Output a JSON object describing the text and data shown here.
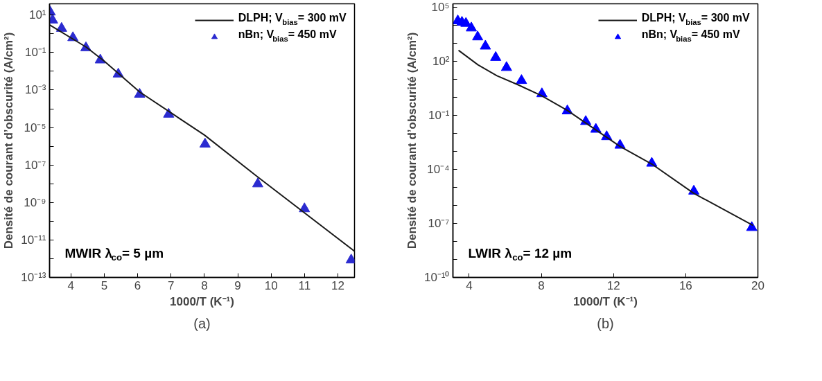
{
  "chart_data": [
    {
      "type": "line",
      "xlabel": "1000/T (K⁻¹)",
      "ylabel": "Densité de courant d’obscurité (A/cm²)",
      "log": "y",
      "grid": false,
      "legend": "top right",
      "xlim": [
        3.36,
        12.5
      ],
      "xticks": [
        4,
        5,
        6,
        7,
        8,
        9,
        10,
        11,
        12
      ],
      "ylim": [
        1e-13,
        40
      ],
      "yticks": [
        {
          "value": 10,
          "label": "10¹"
        },
        {
          "value": 1,
          "label": null
        },
        {
          "value": 0.1,
          "label": "10⁻¹"
        },
        {
          "value": 0.01,
          "label": null
        },
        {
          "value": 0.001,
          "label": "10⁻³"
        },
        {
          "value": 0.0001,
          "label": null
        },
        {
          "value": 1e-05,
          "label": "10⁻⁵"
        },
        {
          "value": 1e-06,
          "label": null
        },
        {
          "value": 1e-07,
          "label": "10⁻⁷"
        },
        {
          "value": 1e-08,
          "label": null
        },
        {
          "value": 1e-09,
          "label": "10⁻⁹"
        },
        {
          "value": 1e-10,
          "label": null
        },
        {
          "value": 1e-11,
          "label": "10⁻¹¹"
        },
        {
          "value": 1e-12,
          "label": null
        },
        {
          "value": 1e-13,
          "label": "10⁻¹³"
        }
      ],
      "series": [
        {
          "name": "DLPH; V$_{bias}$= 300 mV",
          "color": "#1a1a1a",
          "marker": "none",
          "x": [
            3.36,
            4.45,
            5.0,
            6.06,
            8.0,
            9.6,
            12.5
          ],
          "values": [
            3.0,
            0.2,
            0.035,
            0.00079,
            4e-06,
            2.3e-08,
            2.5e-12
          ]
        },
        {
          "name": "nBn; V$_{bias}$= 450 mV",
          "type": "scatter",
          "color": "#2b2bd0",
          "marker": "triangle",
          "x": [
            3.38,
            3.45,
            3.72,
            4.06,
            4.45,
            4.88,
            5.42,
            6.06,
            6.93,
            8.02,
            9.6,
            11.0,
            12.4
          ],
          "values": [
            14.5,
            5.4,
            1.95,
            0.62,
            0.18,
            0.04,
            0.0071,
            0.00059,
            5.1e-05,
            1.3e-06,
            9.8e-09,
            4.6e-10,
            8.5e-13
          ]
        }
      ],
      "annotations": [
        "MWIR λ$_{co}$= 5 µm",
        "(a)"
      ]
    },
    {
      "type": "line",
      "xlabel": "1000/T (K⁻¹)",
      "ylabel": "Densité de courant d’obscurité (A/cm²)",
      "log": "y",
      "grid": false,
      "legend": "top right",
      "xlim": [
        3.1,
        20
      ],
      "xticks": [
        4,
        8,
        12,
        16,
        20
      ],
      "ylim": [
        1e-10,
        160000
      ],
      "yticks": [
        {
          "value": 100000,
          "label": "10⁵"
        },
        {
          "value": 10000,
          "label": null
        },
        {
          "value": 1000,
          "label": null
        },
        {
          "value": 100,
          "label": "10²"
        },
        {
          "value": 10,
          "label": null
        },
        {
          "value": 1,
          "label": null
        },
        {
          "value": 0.1,
          "label": "10⁻¹"
        },
        {
          "value": 0.01,
          "label": null
        },
        {
          "value": 0.001,
          "label": null
        },
        {
          "value": 0.0001,
          "label": "10⁻⁴"
        },
        {
          "value": 1e-05,
          "label": null
        },
        {
          "value": 1e-06,
          "label": null
        },
        {
          "value": 1e-07,
          "label": "10⁻⁷"
        },
        {
          "value": 1e-08,
          "label": null
        },
        {
          "value": 1e-09,
          "label": null
        },
        {
          "value": 1e-10,
          "label": "10⁻¹⁰"
        }
      ],
      "series": [
        {
          "name": "DLPH; V$_{bias}$= 300 mV",
          "color": "#1a1a1a",
          "marker": "none",
          "x": [
            3.41,
            4.49,
            5.54,
            6.74,
            8.01,
            9.44,
            12.36,
            14.12,
            16.45,
            19.73
          ],
          "values": [
            417,
            65,
            16,
            4.9,
            1.26,
            0.19,
            0.0019,
            0.0002,
            4.7e-06,
            7.8e-08
          ]
        },
        {
          "name": "nBn; V$_{bias}$= 450 mV",
          "type": "scatter",
          "color": "#0000ff",
          "marker": "triangle",
          "x": [
            3.37,
            3.6,
            3.82,
            4.12,
            4.47,
            4.9,
            5.47,
            6.07,
            6.9,
            8.03,
            9.44,
            10.46,
            11.02,
            11.62,
            12.36,
            14.12,
            16.45,
            19.66
          ],
          "values": [
            18000,
            15000,
            13000,
            7200,
            2300,
            710,
            166,
            46,
            8.7,
            1.6,
            0.18,
            0.046,
            0.017,
            0.0066,
            0.0022,
            0.00022,
            6.2e-06,
            5.9e-08
          ]
        }
      ],
      "annotations": [
        "LWIR λ$_{co}$= 12 µm",
        "(b)"
      ]
    }
  ]
}
